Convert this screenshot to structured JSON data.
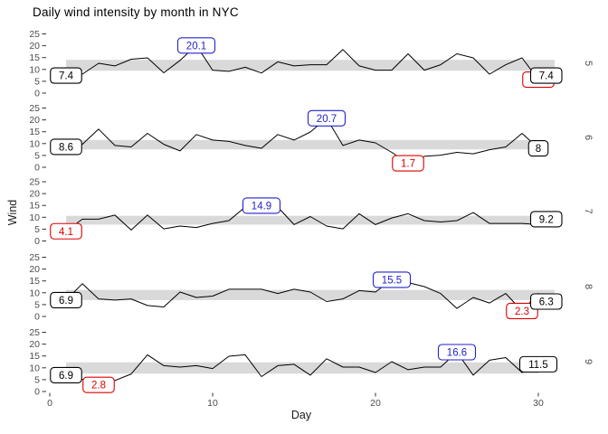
{
  "title": "Daily wind intensity by month in NYC",
  "axes": {
    "x_label": "Day",
    "y_label": "Wind",
    "x_ticks": [
      0,
      10,
      20,
      30
    ],
    "y_ticks": [
      0,
      5,
      10,
      15,
      20,
      25
    ]
  },
  "colors": {
    "line": "#000000",
    "band": "#d9d9d9",
    "max_label": "#2222cf",
    "min_label": "#de0000",
    "label_black": "#000000",
    "tick_text": "#4d4d4d",
    "strip_text": "#4d4d4d"
  },
  "chart_data": {
    "type": "line",
    "title": "Daily wind intensity by month in NYC",
    "xlabel": "Day",
    "ylabel": "Wind",
    "xlim": [
      0,
      31
    ],
    "ylim": [
      0,
      25
    ],
    "x_ticks": [
      0,
      10,
      20,
      30
    ],
    "y_ticks": [
      0,
      5,
      10,
      15,
      20,
      25
    ],
    "grid": false,
    "facet_variable": "month",
    "day_start": 1,
    "facets": [
      {
        "month": "5",
        "values": [
          7.4,
          8.0,
          12.6,
          11.5,
          14.3,
          14.9,
          8.6,
          13.8,
          20.1,
          9.7,
          9.2,
          10.9,
          8.5,
          13.2,
          11.5,
          12.0,
          12.0,
          18.4,
          11.5,
          9.7,
          9.7,
          16.6,
          9.7,
          12.0,
          16.6,
          14.9,
          8.0,
          12.0,
          14.9,
          5.7,
          7.4
        ],
        "band": [
          9.45,
          14.05
        ],
        "labels": [
          {
            "kind": "first",
            "day": 1,
            "value": 7.4,
            "text": "7.4"
          },
          {
            "kind": "max",
            "day": 9,
            "value": 20.1,
            "text": "20.1"
          },
          {
            "kind": "min",
            "day": 30,
            "value": 5.7,
            "text": "5.7"
          },
          {
            "kind": "last",
            "day": 31,
            "value": 7.4,
            "text": "7.4"
          }
        ]
      },
      {
        "month": "6",
        "values": [
          8.6,
          9.7,
          16.1,
          9.2,
          8.6,
          14.3,
          9.7,
          6.9,
          13.8,
          11.5,
          10.9,
          9.2,
          8.0,
          13.8,
          11.5,
          14.9,
          20.7,
          9.2,
          11.5,
          10.3,
          6.3,
          1.7,
          4.6,
          5.1,
          6.3,
          5.7,
          7.4,
          8.6,
          14.3,
          8.0
        ],
        "band": [
          7.55,
          11.5
        ],
        "labels": [
          {
            "kind": "first",
            "day": 1,
            "value": 8.6,
            "text": "8.6"
          },
          {
            "kind": "max",
            "day": 17,
            "value": 20.7,
            "text": "20.7"
          },
          {
            "kind": "min",
            "day": 22,
            "value": 1.7,
            "text": "1.7"
          },
          {
            "kind": "last",
            "day": 30,
            "value": 8.0,
            "text": "8"
          }
        ]
      },
      {
        "month": "7",
        "values": [
          4.1,
          9.2,
          9.2,
          10.9,
          4.6,
          10.9,
          5.1,
          6.3,
          5.7,
          7.4,
          8.6,
          14.3,
          14.9,
          14.3,
          6.9,
          10.3,
          6.3,
          5.1,
          11.5,
          6.9,
          9.7,
          11.5,
          8.6,
          8.0,
          8.6,
          12.0,
          7.4,
          7.4,
          7.4,
          6.9,
          9.2
        ],
        "band": [
          6.9,
          10.6
        ],
        "labels": [
          {
            "kind": "min",
            "day": 1,
            "value": 4.1,
            "text": "4.1"
          },
          {
            "kind": "max",
            "day": 13,
            "value": 14.9,
            "text": "14.9"
          },
          {
            "kind": "last",
            "day": 31,
            "value": 9.2,
            "text": "9.2"
          }
        ]
      },
      {
        "month": "8",
        "values": [
          6.9,
          13.8,
          7.4,
          6.9,
          7.4,
          4.6,
          4.0,
          10.3,
          8.0,
          8.6,
          11.5,
          11.5,
          11.5,
          9.7,
          11.5,
          10.3,
          6.3,
          7.4,
          10.9,
          10.3,
          15.5,
          14.3,
          12.6,
          9.7,
          3.4,
          8.0,
          5.7,
          9.7,
          2.3,
          9.7,
          6.3
        ],
        "band": [
          6.9,
          11.2
        ],
        "labels": [
          {
            "kind": "first",
            "day": 1,
            "value": 6.9,
            "text": "6.9"
          },
          {
            "kind": "max",
            "day": 21,
            "value": 15.5,
            "text": "15.5"
          },
          {
            "kind": "min",
            "day": 29,
            "value": 2.3,
            "text": "2.3"
          },
          {
            "kind": "last",
            "day": 31,
            "value": 6.3,
            "text": "6.3"
          }
        ]
      },
      {
        "month": "9",
        "values": [
          6.9,
          5.1,
          2.8,
          4.6,
          7.4,
          15.5,
          10.9,
          10.3,
          10.9,
          9.7,
          14.9,
          15.5,
          6.3,
          10.9,
          11.5,
          6.9,
          13.8,
          10.3,
          10.3,
          8.0,
          12.6,
          9.2,
          10.3,
          10.3,
          16.6,
          6.9,
          13.2,
          14.3,
          8.0,
          11.5
        ],
        "band": [
          7.55,
          12.3
        ],
        "labels": [
          {
            "kind": "first",
            "day": 1,
            "value": 6.9,
            "text": "6.9"
          },
          {
            "kind": "min",
            "day": 3,
            "value": 2.8,
            "text": "2.8"
          },
          {
            "kind": "max",
            "day": 25,
            "value": 16.6,
            "text": "16.6"
          },
          {
            "kind": "last",
            "day": 30,
            "value": 11.5,
            "text": "11.5"
          }
        ]
      }
    ]
  }
}
